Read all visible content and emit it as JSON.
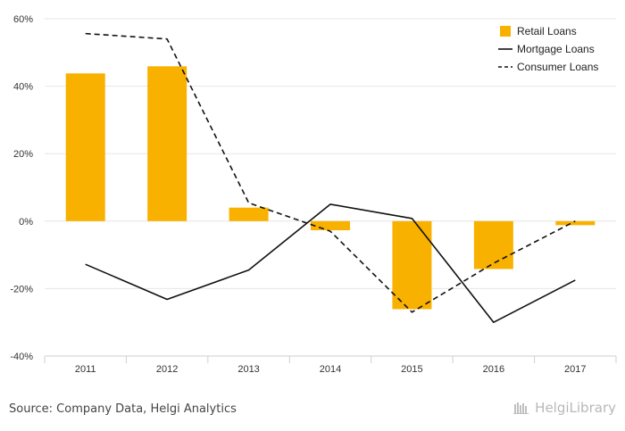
{
  "chart_data": {
    "type": "bar",
    "title": "",
    "xlabel": "",
    "ylabel": "",
    "categories": [
      "2011",
      "2012",
      "2013",
      "2014",
      "2015",
      "2016",
      "2017"
    ],
    "ylim": [
      -40,
      60
    ],
    "yticks": [
      -40,
      -20,
      0,
      20,
      40,
      60
    ],
    "ytick_labels": [
      "-40%",
      "-20%",
      "0%",
      "20%",
      "40%",
      "60%"
    ],
    "grid": true,
    "legend_position": "top-right",
    "series": [
      {
        "name": "Retail Loans",
        "kind": "bar",
        "color": "#F9B100",
        "values": [
          43.8,
          45.9,
          4.0,
          -2.7,
          -26.1,
          -14.2,
          -1.2
        ]
      },
      {
        "name": "Mortgage Loans",
        "kind": "line",
        "style": "solid",
        "color": "#111111",
        "values": [
          -12.8,
          -23.2,
          -14.5,
          5.0,
          0.8,
          -30.0,
          -17.5
        ]
      },
      {
        "name": "Consumer Loans",
        "kind": "line",
        "style": "dashed",
        "color": "#111111",
        "values": [
          55.6,
          54.0,
          5.4,
          -3.0,
          -27.0,
          -12.5,
          0.0
        ]
      }
    ]
  },
  "footer": {
    "source": "Source: Company Data, Helgi Analytics",
    "brand": "HelgiLibrary"
  }
}
